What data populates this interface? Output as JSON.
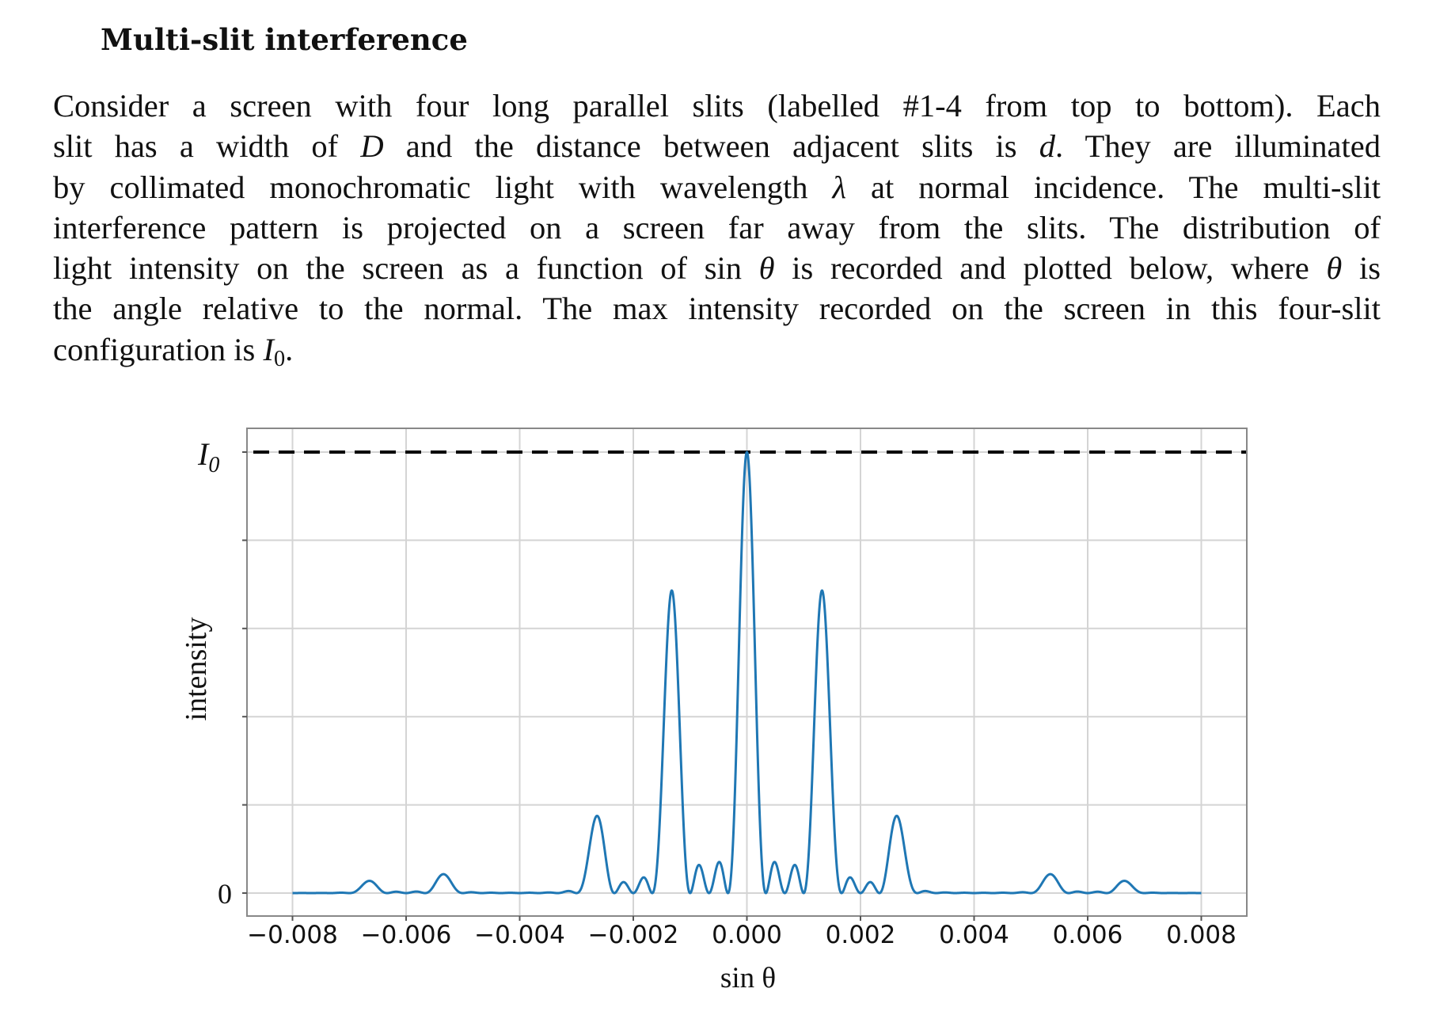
{
  "document": {
    "title": "Multi-slit interference",
    "paragraph_lines": [
      [
        "Consider a screen with four long parallel slits (labelled #1-4 from top to bottom). Each"
      ],
      [
        "slit has a width of ",
        {
          "math": "D"
        },
        " and the distance between adjacent slits is ",
        {
          "math": "d"
        },
        ". They are illuminated"
      ],
      [
        "by collimated monochromatic light with wavelength ",
        {
          "math": "λ"
        },
        " at normal incidence. The multi-slit"
      ],
      [
        "interference pattern is projected on a screen far away from the slits. The distribution of"
      ],
      [
        "light intensity on the screen as a function of sin ",
        {
          "math": "θ"
        },
        " is recorded and plotted below, where ",
        {
          "math": "θ"
        },
        " is"
      ],
      [
        "the angle relative to the normal. The max intensity recorded on the screen in this four-slit"
      ],
      [
        "configuration is ",
        {
          "math": "I",
          "sub": "0"
        },
        "."
      ]
    ]
  },
  "chart_data": {
    "type": "line",
    "title": "",
    "xlabel": "sin θ",
    "ylabel": "intensity",
    "xlim": [
      -0.0089,
      0.0089
    ],
    "ylim": [
      -0.05,
      1.045
    ],
    "x_ticks": [
      -0.008,
      -0.006,
      -0.004,
      -0.002,
      0.0,
      0.002,
      0.004,
      0.006,
      0.008
    ],
    "x_tick_labels": [
      "−0.008",
      "−0.006",
      "−0.004",
      "−0.002",
      "0.000",
      "0.002",
      "0.004",
      "0.006",
      "0.008"
    ],
    "y_ticks": [
      0,
      0.2,
      0.4,
      0.6,
      0.8,
      1.0
    ],
    "y_tick_labels": [
      "0",
      "",
      "",
      "",
      "",
      "I0"
    ],
    "grid": true,
    "legend": null,
    "reference_line": {
      "y": 1.0,
      "style": "dashed",
      "color": "#000000",
      "label": "I0"
    },
    "series": [
      {
        "name": "intensity",
        "color": "#1f77b4",
        "model": "I0 * sinc^2(pi*D*s/lambda) * [sin(4*pi*d*s/lambda) / (4*sin(pi*d*s/lambda))]^2",
        "lambda_over_D": 0.004,
        "lambda_over_d": 0.0013333,
        "x_range": [
          -0.008,
          0.008
        ],
        "principal_maxima": [
          {
            "x": -0.00667,
            "y": 0.027
          },
          {
            "x": -0.00533,
            "y": 0.043
          },
          {
            "x": -0.00267,
            "y": 0.171
          },
          {
            "x": -0.00133,
            "y": 0.684
          },
          {
            "x": 0.0,
            "y": 1.0
          },
          {
            "x": 0.00133,
            "y": 0.684
          },
          {
            "x": 0.00267,
            "y": 0.171
          },
          {
            "x": 0.00533,
            "y": 0.043
          },
          {
            "x": 0.00667,
            "y": 0.027
          }
        ],
        "missing_orders": [
          -0.004,
          0.004
        ]
      }
    ]
  }
}
